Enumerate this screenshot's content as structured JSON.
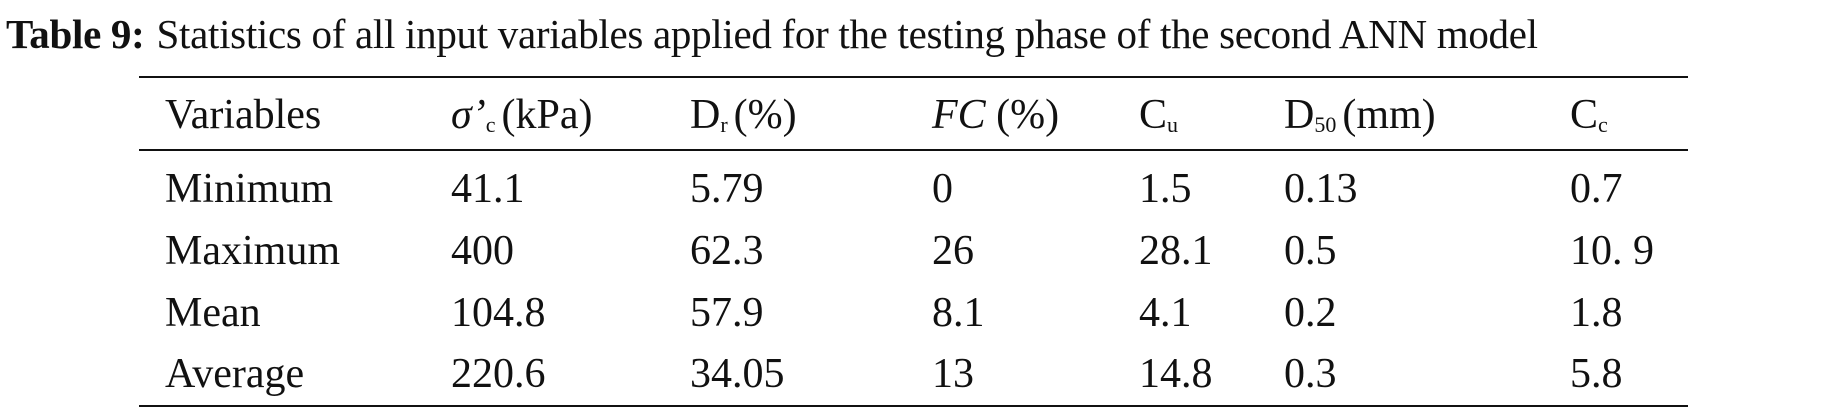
{
  "title": {
    "label": "Table 9:",
    "text": "Statistics of all input variables applied for the testing phase of the second ANN model"
  },
  "table": {
    "headers": [
      {
        "text": "Variables"
      },
      {
        "text": "σ’",
        "sub": "c",
        "unit": "(kPa)",
        "italic": true
      },
      {
        "text": "D",
        "sub": "r",
        "unit": "(%)"
      },
      {
        "text": "FC",
        "unit": "(%)",
        "italic": true
      },
      {
        "text": "C",
        "sub": "u"
      },
      {
        "text": "D",
        "sub": "50",
        "unit": "(mm)"
      },
      {
        "text": "C",
        "sub": "c"
      }
    ],
    "rows": [
      [
        "Minimum",
        "41.1",
        "5.79",
        "0",
        "1.5",
        "0.13",
        "0.7"
      ],
      [
        "Maximum",
        "400",
        "62.3",
        "26",
        "28.1",
        "0.5",
        "10. 9"
      ],
      [
        "Mean",
        "104.8",
        "57.9",
        "8.1",
        "4.1",
        "0.2",
        "1.8"
      ],
      [
        "Average",
        "220.6",
        "34.05",
        "13",
        "14.8",
        "0.3",
        "5.8"
      ]
    ]
  }
}
